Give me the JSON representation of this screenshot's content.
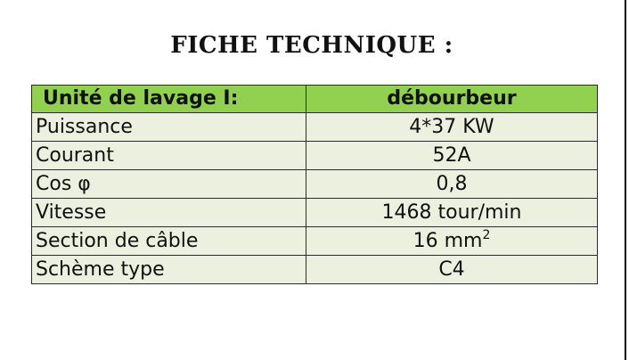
{
  "title": "FICHE TECHNIQUE :",
  "table": {
    "header": {
      "label": "Unité de lavage I:",
      "value": "débourbeur"
    },
    "rows": [
      {
        "label": "Puissance",
        "value": "4*37 KW"
      },
      {
        "label": "Courant",
        "value": "52A"
      },
      {
        "label": "Cos φ",
        "value": "0,8"
      },
      {
        "label": "Vitesse",
        "value": "1468 tour/min"
      },
      {
        "label": "Section de câble",
        "value": "16  mm",
        "superscript": "2"
      },
      {
        "label": "Schème type",
        "value": "C4"
      }
    ]
  },
  "colors": {
    "header_bg": "#92d050",
    "row_bg": "#ebf1de",
    "border": "#2b2b2b"
  }
}
